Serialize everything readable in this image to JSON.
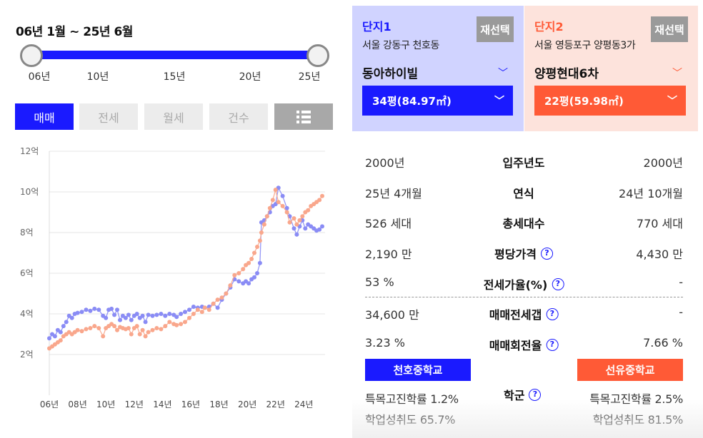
{
  "period": {
    "title": "06년 1월 ~ 25년 6월",
    "ticks": [
      "06년",
      "10년",
      "15년",
      "20년",
      "25년"
    ]
  },
  "tabs": [
    "매매",
    "전세",
    "월세",
    "건수"
  ],
  "tabs_active": "매매",
  "list_icon": "list-icon",
  "complex1": {
    "label": "단지1",
    "reselect": "재선택",
    "address": "서울 강동구 천호동",
    "name": "동아하이빌",
    "size": "34평(84.97㎡)",
    "color": "#1a1aff",
    "bg": "#d0d3ff"
  },
  "complex2": {
    "label": "단지2",
    "reselect": "재선택",
    "address": "서울 영등포구 양평동3가",
    "name": "양평현대6차",
    "size": "22평(59.98㎡)",
    "color": "#ff5a36",
    "bg": "#fde3dc"
  },
  "compare": [
    {
      "label": "입주년도",
      "left": "2000년",
      "right": "2000년",
      "help": false
    },
    {
      "label": "연식",
      "left": "25년 4개월",
      "right": "24년 10개월",
      "help": false
    },
    {
      "label": "총세대수",
      "left": "526 세대",
      "right": "770 세대",
      "help": false
    },
    {
      "label": "평당가격",
      "left": "2,190 만",
      "right": "4,430 만",
      "help": true
    },
    {
      "label": "전세가율(%)",
      "left": "53 %",
      "right": "-",
      "help": true
    },
    {
      "label": "매매전세갭",
      "left": "34,600 만",
      "right": "-",
      "help": true
    },
    {
      "label": "매매회전율",
      "left": "3.23 %",
      "right": "7.66 %",
      "help": true
    }
  ],
  "school": {
    "label": "학군",
    "left_name": "천호중학교",
    "right_name": "선유중학교",
    "left_stat1": "특목고진학률 1.2%",
    "left_stat2": "학업성취도 65.7%",
    "right_stat1": "특목고진학률 2.5%",
    "right_stat2": "학업성취도 81.5%"
  },
  "chart_data": {
    "type": "scatter",
    "ylabels": [
      "12억",
      "10억",
      "8억",
      "6억",
      "4억",
      "2억"
    ],
    "yticks": [
      12,
      10,
      8,
      6,
      4,
      2
    ],
    "xlabels": [
      "06년",
      "08년",
      "10년",
      "12년",
      "14년",
      "16년",
      "18년",
      "20년",
      "22년",
      "24년"
    ],
    "xticks": [
      2006,
      2008,
      2010,
      2012,
      2014,
      2016,
      2018,
      2020,
      2022,
      2024
    ],
    "xlim": [
      2006,
      2025.5
    ],
    "ylim": [
      0,
      12
    ],
    "series": [
      {
        "color": "#8a8cf5",
        "points": [
          [
            2006.0,
            2.8
          ],
          [
            2006.2,
            3.0
          ],
          [
            2006.4,
            2.9
          ],
          [
            2006.6,
            3.2
          ],
          [
            2006.8,
            3.1
          ],
          [
            2007.0,
            3.4
          ],
          [
            2007.2,
            3.6
          ],
          [
            2007.4,
            3.9
          ],
          [
            2007.6,
            3.8
          ],
          [
            2007.8,
            4.0
          ],
          [
            2008.0,
            4.05
          ],
          [
            2008.3,
            4.1
          ],
          [
            2008.6,
            4.2
          ],
          [
            2008.9,
            4.15
          ],
          [
            2009.2,
            4.25
          ],
          [
            2009.5,
            4.2
          ],
          [
            2009.8,
            3.9
          ],
          [
            2010.0,
            3.8
          ],
          [
            2010.2,
            4.2
          ],
          [
            2010.4,
            4.25
          ],
          [
            2010.6,
            3.95
          ],
          [
            2010.8,
            4.2
          ],
          [
            2011.0,
            3.7
          ],
          [
            2011.2,
            3.9
          ],
          [
            2011.4,
            3.8
          ],
          [
            2011.6,
            3.95
          ],
          [
            2011.8,
            3.7
          ],
          [
            2012.0,
            3.9
          ],
          [
            2012.2,
            4.0
          ],
          [
            2012.4,
            3.8
          ],
          [
            2012.6,
            3.9
          ],
          [
            2012.8,
            3.6
          ],
          [
            2013.0,
            3.95
          ],
          [
            2013.3,
            3.9
          ],
          [
            2013.6,
            3.95
          ],
          [
            2013.9,
            4.0
          ],
          [
            2014.2,
            3.9
          ],
          [
            2014.5,
            4.0
          ],
          [
            2014.8,
            3.95
          ],
          [
            2015.0,
            3.85
          ],
          [
            2015.3,
            4.0
          ],
          [
            2015.6,
            4.1
          ],
          [
            2015.9,
            4.2
          ],
          [
            2016.2,
            4.35
          ],
          [
            2016.5,
            4.3
          ],
          [
            2016.8,
            4.35
          ],
          [
            2017.0,
            4.3
          ],
          [
            2017.3,
            4.35
          ],
          [
            2017.6,
            4.5
          ],
          [
            2017.9,
            4.3
          ],
          [
            2018.2,
            4.7
          ],
          [
            2018.5,
            5.0
          ],
          [
            2018.8,
            5.3
          ],
          [
            2019.1,
            5.7
          ],
          [
            2019.4,
            5.6
          ],
          [
            2019.7,
            5.5
          ],
          [
            2019.9,
            5.6
          ],
          [
            2020.1,
            5.5
          ],
          [
            2020.3,
            5.7
          ],
          [
            2020.5,
            5.8
          ],
          [
            2020.7,
            6.0
          ],
          [
            2020.9,
            6.5
          ],
          [
            2021.0,
            8.5
          ],
          [
            2021.2,
            8.6
          ],
          [
            2021.4,
            8.8
          ],
          [
            2021.6,
            9.0
          ],
          [
            2021.8,
            9.3
          ],
          [
            2022.0,
            9.4
          ],
          [
            2022.2,
            10.2
          ],
          [
            2022.5,
            9.8
          ],
          [
            2022.8,
            9.2
          ],
          [
            2023.0,
            8.8
          ],
          [
            2023.3,
            8.2
          ],
          [
            2023.5,
            7.9
          ],
          [
            2023.7,
            8.3
          ],
          [
            2023.9,
            8.6
          ],
          [
            2024.1,
            8.2
          ],
          [
            2024.3,
            8.4
          ],
          [
            2024.5,
            8.3
          ],
          [
            2024.7,
            8.2
          ],
          [
            2024.9,
            8.1
          ],
          [
            2025.1,
            8.15
          ],
          [
            2025.3,
            8.3
          ]
        ]
      },
      {
        "color": "#f9a78c",
        "points": [
          [
            2006.0,
            2.3
          ],
          [
            2006.2,
            2.4
          ],
          [
            2006.4,
            2.5
          ],
          [
            2006.6,
            2.6
          ],
          [
            2006.8,
            2.7
          ],
          [
            2007.0,
            2.9
          ],
          [
            2007.2,
            3.0
          ],
          [
            2007.4,
            3.1
          ],
          [
            2007.6,
            3.0
          ],
          [
            2007.8,
            3.1
          ],
          [
            2008.0,
            3.2
          ],
          [
            2008.3,
            3.15
          ],
          [
            2008.6,
            3.25
          ],
          [
            2008.9,
            3.3
          ],
          [
            2009.2,
            3.4
          ],
          [
            2009.5,
            3.3
          ],
          [
            2009.8,
            2.9
          ],
          [
            2010.0,
            3.3
          ],
          [
            2010.2,
            3.4
          ],
          [
            2010.4,
            3.5
          ],
          [
            2010.6,
            3.4
          ],
          [
            2010.8,
            3.2
          ],
          [
            2011.0,
            3.35
          ],
          [
            2011.2,
            3.3
          ],
          [
            2011.4,
            3.25
          ],
          [
            2011.6,
            3.3
          ],
          [
            2011.8,
            3.0
          ],
          [
            2012.0,
            3.3
          ],
          [
            2012.2,
            3.4
          ],
          [
            2012.4,
            3.0
          ],
          [
            2012.6,
            3.2
          ],
          [
            2012.8,
            2.9
          ],
          [
            2013.0,
            3.1
          ],
          [
            2013.3,
            3.2
          ],
          [
            2013.6,
            3.3
          ],
          [
            2013.9,
            3.25
          ],
          [
            2014.2,
            3.4
          ],
          [
            2014.5,
            3.6
          ],
          [
            2014.8,
            3.5
          ],
          [
            2015.0,
            3.45
          ],
          [
            2015.3,
            3.5
          ],
          [
            2015.6,
            3.6
          ],
          [
            2015.9,
            3.8
          ],
          [
            2016.2,
            4.0
          ],
          [
            2016.5,
            4.2
          ],
          [
            2016.8,
            4.1
          ],
          [
            2017.0,
            4.3
          ],
          [
            2017.3,
            4.2
          ],
          [
            2017.6,
            4.5
          ],
          [
            2017.9,
            4.7
          ],
          [
            2018.2,
            4.8
          ],
          [
            2018.5,
            5.0
          ],
          [
            2018.8,
            5.4
          ],
          [
            2019.1,
            5.9
          ],
          [
            2019.4,
            6.0
          ],
          [
            2019.7,
            6.2
          ],
          [
            2019.9,
            6.4
          ],
          [
            2020.1,
            6.5
          ],
          [
            2020.3,
            6.7
          ],
          [
            2020.5,
            7.0
          ],
          [
            2020.7,
            7.3
          ],
          [
            2020.9,
            7.6
          ],
          [
            2021.0,
            8.0
          ],
          [
            2021.2,
            8.4
          ],
          [
            2021.4,
            8.8
          ],
          [
            2021.6,
            9.2
          ],
          [
            2021.8,
            9.6
          ],
          [
            2022.0,
            10.1
          ],
          [
            2022.2,
            9.5
          ],
          [
            2022.5,
            9.3
          ],
          [
            2022.8,
            9.0
          ],
          [
            2023.0,
            8.5
          ],
          [
            2023.3,
            8.7
          ],
          [
            2023.5,
            8.4
          ],
          [
            2023.7,
            8.6
          ],
          [
            2023.9,
            8.8
          ],
          [
            2024.1,
            9.0
          ],
          [
            2024.3,
            9.1
          ],
          [
            2024.5,
            9.3
          ],
          [
            2024.7,
            9.4
          ],
          [
            2024.9,
            9.5
          ],
          [
            2025.1,
            9.6
          ],
          [
            2025.3,
            9.8
          ]
        ]
      }
    ]
  }
}
